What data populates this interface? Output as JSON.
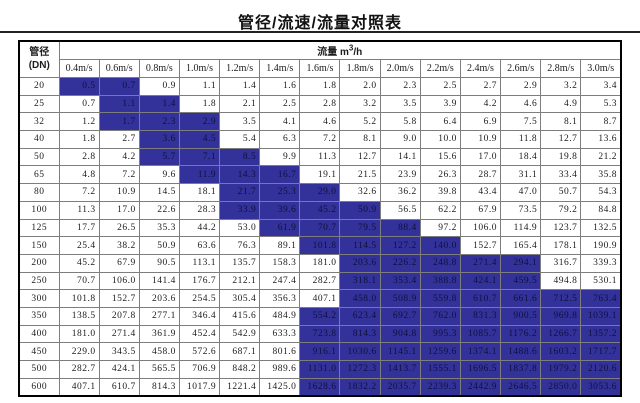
{
  "title": "管径/流速/流量对照表",
  "colors": {
    "highlight_bg": "#32329A",
    "highlight_text": "#10103d",
    "grid_line": "#7d7d7d",
    "outer_border": "#000000"
  },
  "table": {
    "corner_line1": "管径",
    "corner_line2": "(DN)",
    "flow_label_prefix": "流量 m",
    "flow_label_sup": "3",
    "flow_label_suffix": "/h",
    "velocities": [
      "0.4m/s",
      "0.6m/s",
      "0.8m/s",
      "1.0m/s",
      "1.2m/s",
      "1.4m/s",
      "1.6m/s",
      "1.8m/s",
      "2.0m/s",
      "2.2m/s",
      "2.4m/s",
      "2.6m/s",
      "2.8m/s",
      "3.0m/s"
    ],
    "rows": [
      {
        "dn": "20",
        "values": [
          "0.5",
          "0.7",
          "0.9",
          "1.1",
          "1.4",
          "1.6",
          "1.8",
          "2.0",
          "2.3",
          "2.5",
          "2.7",
          "2.9",
          "3.2",
          "3.4"
        ],
        "hl": [
          0,
          1
        ]
      },
      {
        "dn": "25",
        "values": [
          "0.7",
          "1.1",
          "1.4",
          "1.8",
          "2.1",
          "2.5",
          "2.8",
          "3.2",
          "3.5",
          "3.9",
          "4.2",
          "4.6",
          "4.9",
          "5.3"
        ],
        "hl": [
          1,
          2
        ]
      },
      {
        "dn": "32",
        "values": [
          "1.2",
          "1.7",
          "2.3",
          "2.9",
          "3.5",
          "4.1",
          "4.6",
          "5.2",
          "5.8",
          "6.4",
          "6.9",
          "7.5",
          "8.1",
          "8.7"
        ],
        "hl": [
          1,
          2,
          3
        ]
      },
      {
        "dn": "40",
        "values": [
          "1.8",
          "2.7",
          "3.6",
          "4.5",
          "5.4",
          "6.3",
          "7.2",
          "8.1",
          "9.0",
          "10.0",
          "10.9",
          "11.8",
          "12.7",
          "13.6"
        ],
        "hl": [
          2,
          3
        ]
      },
      {
        "dn": "50",
        "values": [
          "2.8",
          "4.2",
          "5.7",
          "7.1",
          "8.5",
          "9.9",
          "11.3",
          "12.7",
          "14.1",
          "15.6",
          "17.0",
          "18.4",
          "19.8",
          "21.2"
        ],
        "hl": [
          2,
          3,
          4
        ]
      },
      {
        "dn": "65",
        "values": [
          "4.8",
          "7.2",
          "9.6",
          "11.9",
          "14.3",
          "16.7",
          "19.1",
          "21.5",
          "23.9",
          "26.3",
          "28.7",
          "31.1",
          "33.4",
          "35.8"
        ],
        "hl": [
          3,
          4,
          5
        ]
      },
      {
        "dn": "80",
        "values": [
          "7.2",
          "10.9",
          "14.5",
          "18.1",
          "21.7",
          "25.3",
          "29.0",
          "32.6",
          "36.2",
          "39.8",
          "43.4",
          "47.0",
          "50.7",
          "54.3"
        ],
        "hl": [
          4,
          5,
          6
        ]
      },
      {
        "dn": "100",
        "values": [
          "11.3",
          "17.0",
          "22.6",
          "28.3",
          "33.9",
          "39.6",
          "45.2",
          "50.9",
          "56.5",
          "62.2",
          "67.9",
          "73.5",
          "79.2",
          "84.8"
        ],
        "hl": [
          4,
          5,
          6,
          7
        ]
      },
      {
        "dn": "125",
        "values": [
          "17.7",
          "26.5",
          "35.3",
          "44.2",
          "53.0",
          "61.9",
          "70.7",
          "79.5",
          "88.4",
          "97.2",
          "106.0",
          "114.9",
          "123.7",
          "132.5"
        ],
        "hl": [
          5,
          6,
          7,
          8
        ]
      },
      {
        "dn": "150",
        "values": [
          "25.4",
          "38.2",
          "50.9",
          "63.6",
          "76.3",
          "89.1",
          "101.8",
          "114.5",
          "127.2",
          "140.0",
          "152.7",
          "165.4",
          "178.1",
          "190.9"
        ],
        "hl": [
          6,
          7,
          8,
          9
        ]
      },
      {
        "dn": "200",
        "values": [
          "45.2",
          "67.9",
          "90.5",
          "113.1",
          "135.7",
          "158.3",
          "181.0",
          "203.6",
          "226.2",
          "248.8",
          "271.4",
          "294.1",
          "316.7",
          "339.3"
        ],
        "hl": [
          7,
          8,
          9,
          10,
          11
        ]
      },
      {
        "dn": "250",
        "values": [
          "70.7",
          "106.0",
          "141.4",
          "176.7",
          "212.1",
          "247.4",
          "282.7",
          "318.1",
          "353.4",
          "388.8",
          "424.1",
          "459.5",
          "494.8",
          "530.1"
        ],
        "hl": [
          7,
          8,
          9,
          10,
          11
        ]
      },
      {
        "dn": "300",
        "values": [
          "101.8",
          "152.7",
          "203.6",
          "254.5",
          "305.4",
          "356.3",
          "407.1",
          "458.0",
          "508.9",
          "559.8",
          "610.7",
          "661.6",
          "712.5",
          "763.4"
        ],
        "hl": [
          7,
          8,
          9,
          10,
          11,
          12,
          13
        ]
      },
      {
        "dn": "350",
        "values": [
          "138.5",
          "207.8",
          "277.1",
          "346.4",
          "415.6",
          "484.9",
          "554.2",
          "623.4",
          "692.7",
          "762.0",
          "831.3",
          "900.5",
          "969.8",
          "1039.1"
        ],
        "hl": [
          6,
          7,
          8,
          9,
          10,
          11,
          12,
          13
        ]
      },
      {
        "dn": "400",
        "values": [
          "181.0",
          "271.4",
          "361.9",
          "452.4",
          "542.9",
          "633.3",
          "723.8",
          "814.3",
          "904.8",
          "995.3",
          "1085.7",
          "1176.2",
          "1266.7",
          "1357.2"
        ],
        "hl": [
          6,
          7,
          8,
          9,
          10,
          11,
          12,
          13
        ]
      },
      {
        "dn": "450",
        "values": [
          "229.0",
          "343.5",
          "458.0",
          "572.6",
          "687.1",
          "801.6",
          "916.1",
          "1030.6",
          "1145.1",
          "1259.6",
          "1374.1",
          "1488.6",
          "1603.2",
          "1717.7"
        ],
        "hl": [
          6,
          7,
          8,
          9,
          10,
          11,
          12,
          13
        ]
      },
      {
        "dn": "500",
        "values": [
          "282.7",
          "424.1",
          "565.5",
          "706.9",
          "848.2",
          "989.6",
          "1131.0",
          "1272.3",
          "1413.7",
          "1555.1",
          "1696.5",
          "1837.8",
          "1979.2",
          "2120.6"
        ],
        "hl": [
          6,
          7,
          8,
          9,
          10,
          11,
          12,
          13
        ]
      },
      {
        "dn": "600",
        "values": [
          "407.1",
          "610.7",
          "814.3",
          "1017.9",
          "1221.4",
          "1425.0",
          "1628.6",
          "1832.2",
          "2035.7",
          "2239.3",
          "2442.9",
          "2646.5",
          "2850.0",
          "3053.6"
        ],
        "hl": [
          6,
          7,
          8,
          9,
          10,
          11,
          12,
          13
        ]
      }
    ]
  }
}
